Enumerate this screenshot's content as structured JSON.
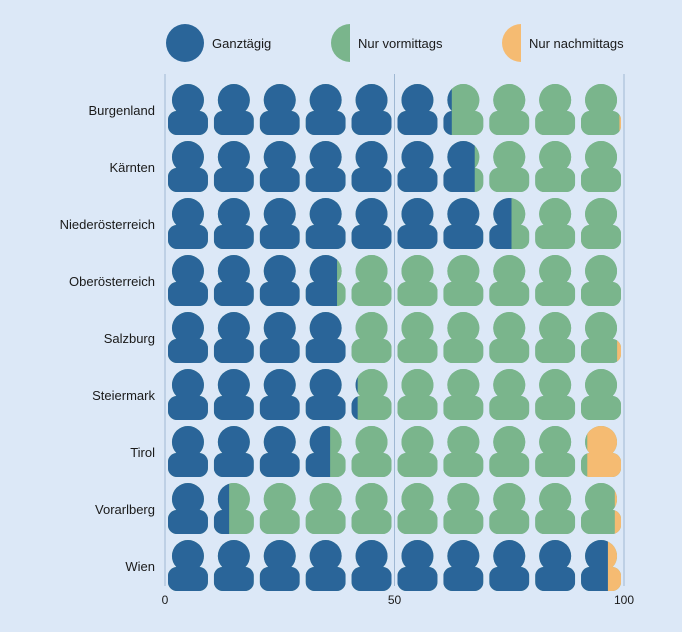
{
  "chart_data": {
    "type": "pictogram-stacked-bar",
    "title": "",
    "xlabel": "",
    "ylabel": "",
    "xlim": [
      0,
      100
    ],
    "x_ticks": [
      "0",
      "50",
      "100"
    ],
    "categories": [
      "Burgenland",
      "Kärnten",
      "Niederösterreich",
      "Oberösterreich",
      "Salzburg",
      "Steiermark",
      "Tirol",
      "Vorarlberg",
      "Wien"
    ],
    "series": [
      {
        "name": "Ganztägig",
        "color": "#2a6599",
        "values": [
          62.5,
          67.5,
          75.5,
          37.5,
          39.5,
          42.0,
          36.0,
          14.0,
          96.5
        ]
      },
      {
        "name": "Nur vormittags",
        "color": "#7ab58c",
        "values": [
          36.5,
          32.0,
          24.0,
          62.0,
          59.0,
          58.0,
          56.0,
          84.0,
          0.0
        ]
      },
      {
        "name": "Nur nachmittags",
        "color": "#f5bb72",
        "values": [
          1.0,
          0.5,
          0.5,
          0.5,
          1.5,
          0.0,
          8.0,
          2.0,
          3.5
        ]
      }
    ],
    "legend_position": "top",
    "grid": "vertical"
  }
}
